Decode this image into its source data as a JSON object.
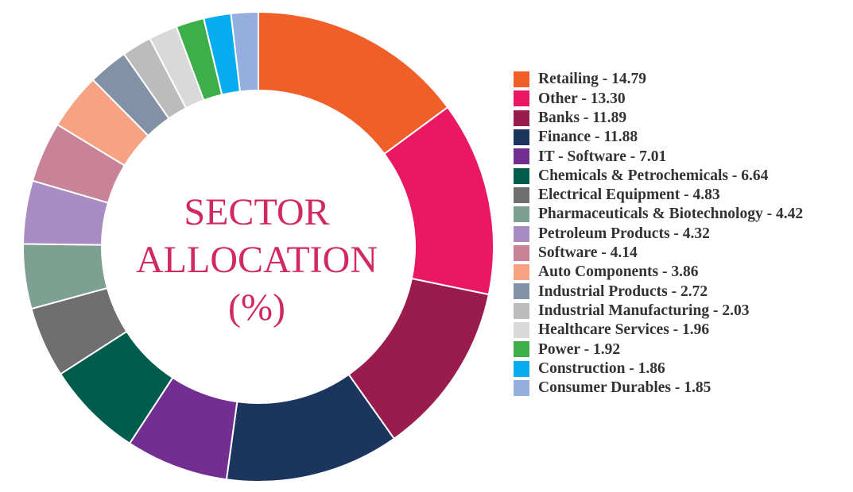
{
  "chart_data": {
    "type": "pie",
    "title": "SECTOR ALLOCATION (%)",
    "title_lines": [
      "SECTOR",
      "ALLOCATION",
      "(%)"
    ],
    "legend_position": "right",
    "donut": true,
    "slices": [
      {
        "label": "Retailing",
        "value": 14.79,
        "color": "#f15f29",
        "legend_text": "Retailing - 14.79"
      },
      {
        "label": "Other",
        "value": 13.3,
        "color": "#ea1763",
        "legend_text": "Other - 13.30"
      },
      {
        "label": "Banks",
        "value": 11.89,
        "color": "#9a1b4d",
        "legend_text": "Banks - 11.89"
      },
      {
        "label": "Finance",
        "value": 11.88,
        "color": "#1b355f",
        "legend_text": "Finance - 11.88"
      },
      {
        "label": "IT - Software",
        "value": 7.01,
        "color": "#722f91",
        "legend_text": "IT - Software - 7.01"
      },
      {
        "label": "Chemicals & Petrochemicals",
        "value": 6.64,
        "color": "#005c4b",
        "legend_text": "Chemicals & Petrochemicals - 6.64"
      },
      {
        "label": "Electrical Equipment",
        "value": 4.83,
        "color": "#6f6f6f",
        "legend_text": "Electrical Equipment - 4.83"
      },
      {
        "label": "Pharmaceuticals & Biotechnology",
        "value": 4.42,
        "color": "#7da093",
        "legend_text": "Pharmaceuticals & Biotechnology - 4.42"
      },
      {
        "label": "Petroleum Products",
        "value": 4.32,
        "color": "#aa8cc4",
        "legend_text": "Petroleum Products - 4.32"
      },
      {
        "label": "Software",
        "value": 4.14,
        "color": "#c98399",
        "legend_text": "Software - 4.14"
      },
      {
        "label": "Auto Components",
        "value": 3.86,
        "color": "#f7a283",
        "legend_text": "Auto Components - 3.86"
      },
      {
        "label": "Industrial Products",
        "value": 2.72,
        "color": "#8391a6",
        "legend_text": "Industrial Products - 2.72"
      },
      {
        "label": "Industrial Manufacturing",
        "value": 2.03,
        "color": "#bcbcbc",
        "legend_text": "Industrial Manufacturing - 2.03"
      },
      {
        "label": "Healthcare Services",
        "value": 1.96,
        "color": "#d9d9d9",
        "legend_text": "Healthcare Services - 1.96"
      },
      {
        "label": "Power",
        "value": 1.92,
        "color": "#3eae4b",
        "legend_text": "Power - 1.92"
      },
      {
        "label": "Construction",
        "value": 1.86,
        "color": "#05adee",
        "legend_text": "Construction - 1.86"
      },
      {
        "label": "Consumer Durables",
        "value": 1.85,
        "color": "#95aee0",
        "legend_text": "Consumer Durables - 1.85"
      }
    ]
  }
}
